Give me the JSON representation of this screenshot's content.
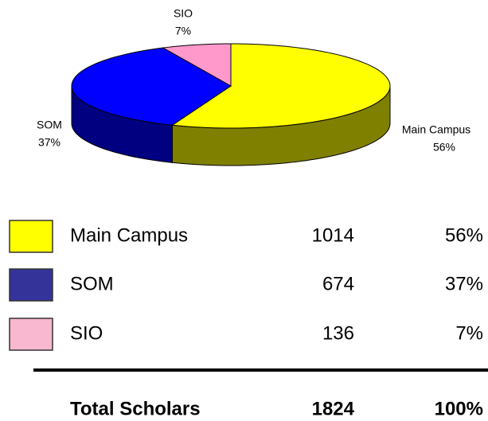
{
  "chart_data": {
    "type": "pie",
    "categories": [
      "Main Campus",
      "SOM",
      "SIO"
    ],
    "values": [
      56,
      37,
      7
    ],
    "value_labels": [
      "56%",
      "37%",
      "7%"
    ],
    "colors": [
      "#ffff00",
      "#0000ff",
      "#ff99cc"
    ],
    "side_colors": [
      "#808000",
      "#000080",
      "#99506f"
    ],
    "legend_colors": [
      "#ffff00",
      "#333399",
      "#f9b8d0"
    ]
  },
  "table": {
    "counts": [
      1014,
      674,
      136
    ],
    "total_label": "Total Scholars",
    "total_count": 1824,
    "total_percent": "100%"
  }
}
